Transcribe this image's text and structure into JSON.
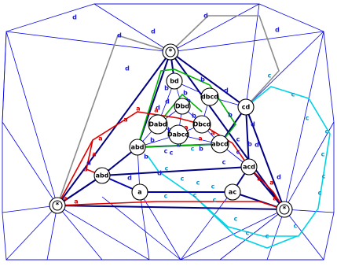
{
  "colors": {
    "background": "#ffffff",
    "wire": "#0000ee",
    "dark": "#000080",
    "gray": "#8c8c8c",
    "red": "#e00000",
    "green": "#00b400",
    "cyan": "#00d2e6",
    "label_dark": "#1a1adc",
    "label_red": "#d40000",
    "label_cyan": "#0096c8"
  },
  "nodes": [
    {
      "id": "top",
      "label": "*"
    },
    {
      "id": "left",
      "label": "*"
    },
    {
      "id": "right",
      "label": "*"
    },
    {
      "id": "bd",
      "label": "bd"
    },
    {
      "id": "Dbd",
      "label": "Dbd"
    },
    {
      "id": "dbcd",
      "label": "dbcd"
    },
    {
      "id": "cd",
      "label": "cd"
    },
    {
      "id": "Dabd",
      "label": "Dabd"
    },
    {
      "id": "Dabcd",
      "label": "Dabcd"
    },
    {
      "id": "Dbcd",
      "label": "Dbcd"
    },
    {
      "id": "abd",
      "label": "abd"
    },
    {
      "id": "abcd",
      "label": "abcd"
    },
    {
      "id": "acd",
      "label": "acd"
    },
    {
      "id": "abd2",
      "label": "abd"
    },
    {
      "id": "a",
      "label": "a"
    },
    {
      "id": "ac",
      "label": "ac"
    }
  ],
  "edge_labels": [
    {
      "text": "d",
      "color": "label_dark"
    },
    {
      "text": "d",
      "color": "label_dark"
    },
    {
      "text": "d",
      "color": "label_dark"
    },
    {
      "text": "d",
      "color": "label_dark"
    },
    {
      "text": "d",
      "color": "label_dark"
    },
    {
      "text": "b",
      "color": "label_dark"
    },
    {
      "text": "b",
      "color": "label_dark"
    },
    {
      "text": "d",
      "color": "label_dark"
    },
    {
      "text": "b",
      "color": "label_dark"
    },
    {
      "text": "d",
      "color": "label_dark"
    },
    {
      "text": "d",
      "color": "label_dark"
    },
    {
      "text": "b",
      "color": "label_dark"
    },
    {
      "text": "b",
      "color": "label_dark"
    },
    {
      "text": "b",
      "color": "label_dark"
    },
    {
      "text": "b",
      "color": "label_dark"
    },
    {
      "text": "d",
      "color": "label_dark"
    },
    {
      "text": "b",
      "color": "label_dark"
    },
    {
      "text": "c",
      "color": "label_dark"
    },
    {
      "text": "b",
      "color": "label_dark"
    },
    {
      "text": "c",
      "color": "label_dark"
    },
    {
      "text": "c",
      "color": "label_dark"
    },
    {
      "text": "c",
      "color": "label_dark"
    },
    {
      "text": "b",
      "color": "label_dark"
    },
    {
      "text": "a",
      "color": "label_red"
    },
    {
      "text": "a",
      "color": "label_red"
    },
    {
      "text": "a",
      "color": "label_red"
    },
    {
      "text": "a",
      "color": "label_red"
    },
    {
      "text": "a",
      "color": "label_red"
    },
    {
      "text": "a",
      "color": "label_red"
    },
    {
      "text": "a",
      "color": "label_red"
    },
    {
      "text": "a",
      "color": "label_red"
    },
    {
      "text": "a",
      "color": "label_red"
    },
    {
      "text": "a",
      "color": "label_red"
    },
    {
      "text": "a",
      "color": "label_red"
    },
    {
      "text": "a",
      "color": "label_red"
    },
    {
      "text": "a",
      "color": "label_red"
    },
    {
      "text": "a",
      "color": "label_red"
    },
    {
      "text": "a",
      "color": "label_red"
    },
    {
      "text": "c",
      "color": "label_cyan"
    },
    {
      "text": "c",
      "color": "label_cyan"
    },
    {
      "text": "c",
      "color": "label_cyan"
    },
    {
      "text": "c",
      "color": "label_cyan"
    },
    {
      "text": "c",
      "color": "label_cyan"
    },
    {
      "text": "c",
      "color": "label_cyan"
    },
    {
      "text": "c",
      "color": "label_cyan"
    },
    {
      "text": "c",
      "color": "label_cyan"
    },
    {
      "text": "c",
      "color": "label_cyan"
    },
    {
      "text": "c",
      "color": "label_cyan"
    },
    {
      "text": "c",
      "color": "label_cyan"
    },
    {
      "text": "c",
      "color": "label_cyan"
    },
    {
      "text": "c",
      "color": "label_cyan"
    },
    {
      "text": "c",
      "color": "label_cyan"
    },
    {
      "text": "c",
      "color": "label_cyan"
    },
    {
      "text": "c",
      "color": "label_cyan"
    },
    {
      "text": "c",
      "color": "label_cyan"
    },
    {
      "text": "c",
      "color": "label_cyan"
    },
    {
      "text": "c",
      "color": "label_cyan"
    },
    {
      "text": "c",
      "color": "label_cyan"
    },
    {
      "text": "d",
      "color": "label_dark"
    },
    {
      "text": "d",
      "color": "label_dark"
    },
    {
      "text": "d",
      "color": "label_dark"
    },
    {
      "text": "d",
      "color": "label_dark"
    },
    {
      "text": "d",
      "color": "label_dark"
    },
    {
      "text": "d",
      "color": "label_dark"
    },
    {
      "text": "b",
      "color": "label_dark"
    },
    {
      "text": "b",
      "color": "label_dark"
    },
    {
      "text": "c",
      "color": "label_dark"
    }
  ]
}
